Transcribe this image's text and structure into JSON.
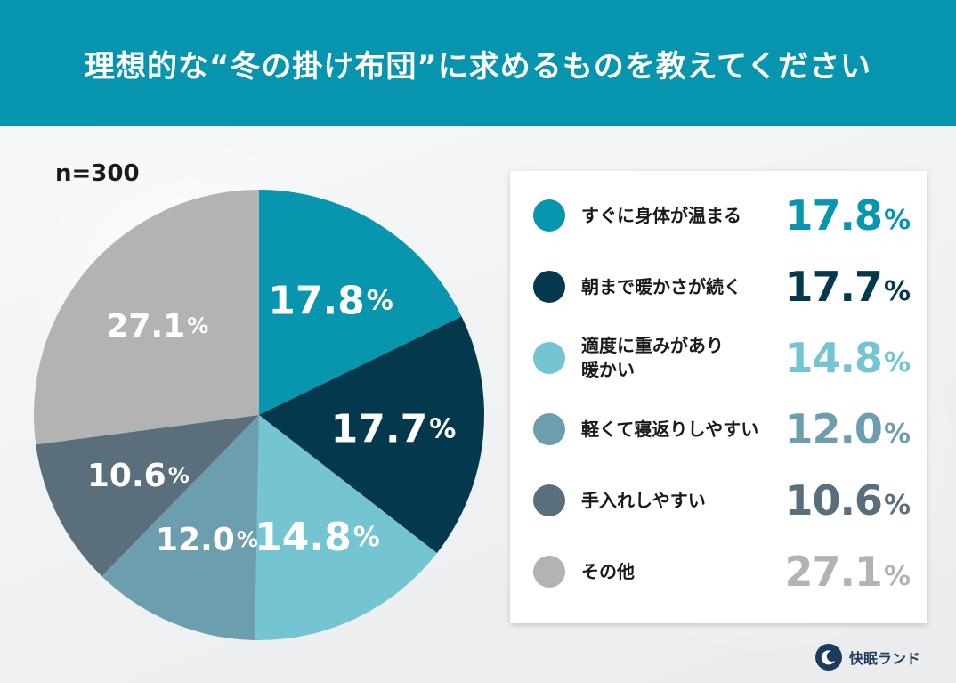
{
  "header": {
    "title": "理想的な“冬の掛け布団”に求めるものを教えてください"
  },
  "sample_size": "n=300",
  "brand": {
    "name": "快眠ランド"
  },
  "unit": "%",
  "colors": {
    "header_bg": "#0794ae",
    "slices": [
      "#0895ae",
      "#04384d",
      "#74c4d2",
      "#6d9eae",
      "#5a6f7b",
      "#b3b3b3"
    ]
  },
  "chart_data": {
    "type": "pie",
    "title": "理想的な“冬の掛け布団”に求めるものを教えてください",
    "categories": [
      "すぐに身体が温まる",
      "朝まで暖かさが続く",
      "適度に重みがあり暖かい",
      "軽くて寝返りしやすい",
      "手入れしやすい",
      "その他"
    ],
    "values": [
      17.8,
      17.7,
      14.8,
      12.0,
      10.6,
      27.1
    ],
    "value_labels": [
      "17.8",
      "17.7",
      "14.8",
      "12.0",
      "10.6",
      "27.1"
    ],
    "legend_placement": "right",
    "legend": [
      {
        "line1": "すぐに身体が温まる",
        "line2": ""
      },
      {
        "line1": "朝まで暖かさが続く",
        "line2": ""
      },
      {
        "line1": "適度に重みがあり",
        "line2": "暖かい"
      },
      {
        "line1": "軽くて寝返りしやすい",
        "line2": ""
      },
      {
        "line1": "手入れしやすい",
        "line2": ""
      },
      {
        "line1": "その他",
        "line2": ""
      }
    ]
  }
}
